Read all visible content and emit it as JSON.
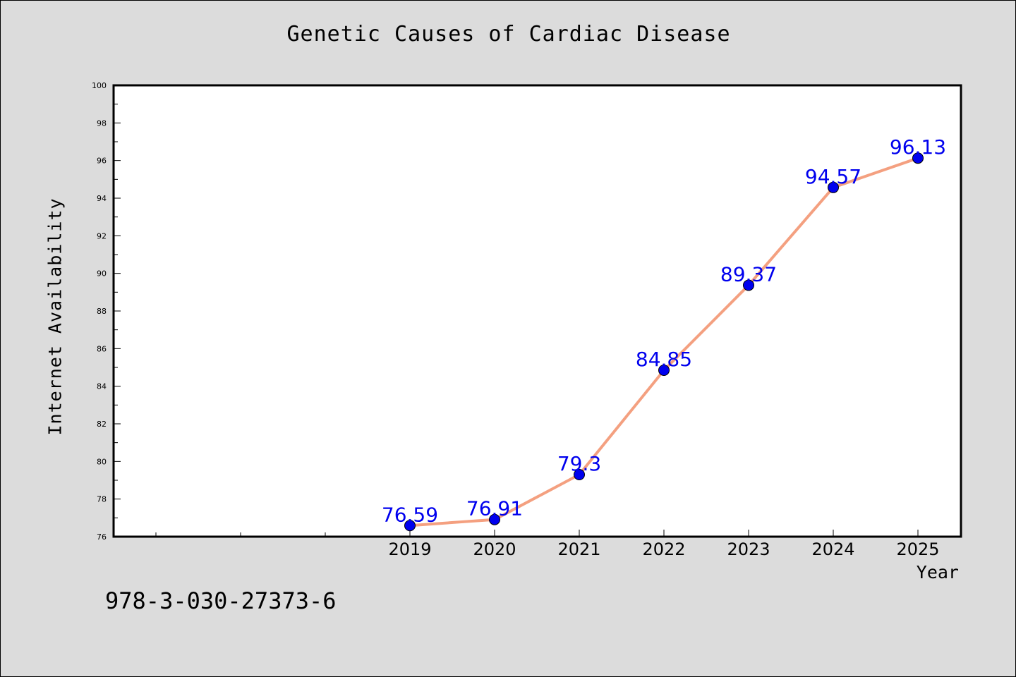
{
  "chart_data": {
    "type": "line",
    "title": "Genetic Causes of Cardiac Disease",
    "xlabel": "Year",
    "ylabel": "Internet Availability",
    "x": [
      "2019",
      "2020",
      "2021",
      "2022",
      "2023",
      "2024",
      "2025"
    ],
    "series": [
      {
        "values": [
          76.59,
          76.91,
          79.3,
          84.85,
          89.37,
          94.57,
          96.13
        ],
        "labels": [
          "76.59",
          "76.91",
          "79.3",
          "84.85",
          "89.37",
          "94.57",
          "96.13"
        ],
        "line_color": "#f4a080",
        "marker_color": "#0000ee",
        "label_color": "#0000ee"
      }
    ],
    "ylim": [
      76,
      100
    ],
    "yticks": [
      "76",
      "78",
      "80",
      "82",
      "84",
      "86",
      "88",
      "90",
      "92",
      "94",
      "96",
      "98",
      "100"
    ],
    "x_slots_before_first": 3,
    "grid": false,
    "legend": "none"
  },
  "footnote": "978-3-030-27373-6",
  "colors": {
    "background": "#dcdcdc",
    "plot_background": "#ffffff",
    "axis": "#000000"
  }
}
